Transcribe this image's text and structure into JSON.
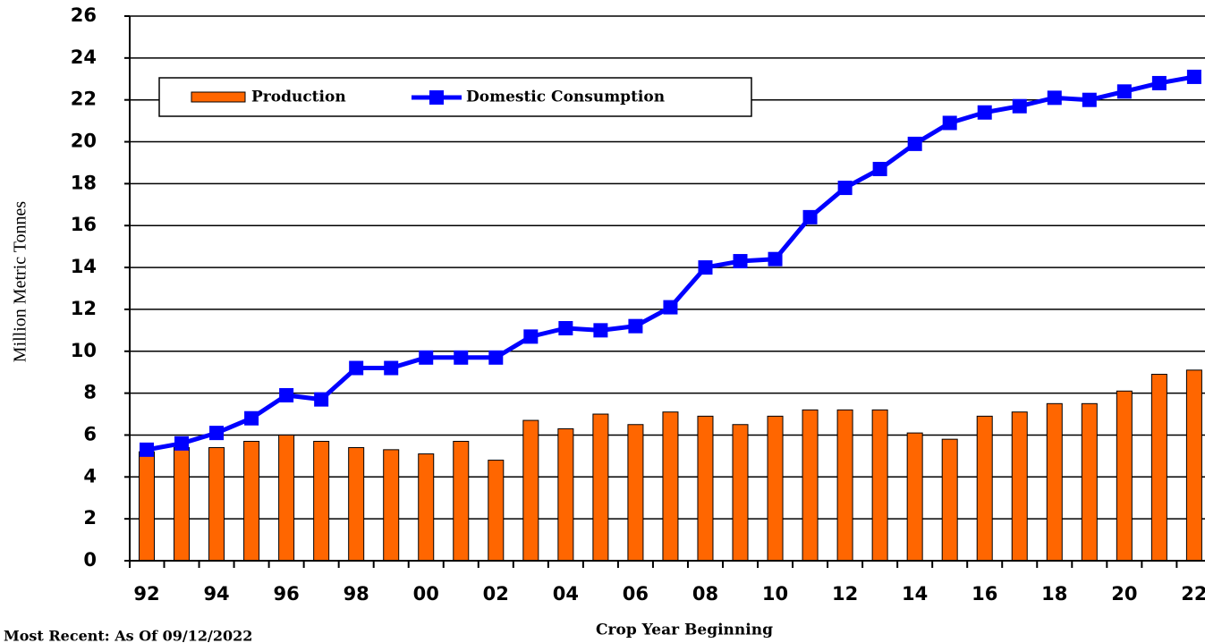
{
  "chart_data": {
    "type": "bar_line",
    "x_label": "Crop Year Beginning",
    "y_label": "Million Metric Tonnes",
    "footnote": "Most Recent: As Of 09/12/2022",
    "categories": [
      "92",
      null,
      "94",
      null,
      "96",
      null,
      "98",
      null,
      "00",
      null,
      "02",
      null,
      "04",
      null,
      "06",
      null,
      "08",
      null,
      "10",
      null,
      "12",
      null,
      "14",
      null,
      "16",
      null,
      "18",
      null,
      "20",
      null,
      "22"
    ],
    "series": [
      {
        "name": "Production",
        "type": "bar",
        "color": "#ff6600",
        "values": [
          5.2,
          5.4,
          5.4,
          5.7,
          6.0,
          5.7,
          5.4,
          5.3,
          5.1,
          5.7,
          4.8,
          6.7,
          6.3,
          7.0,
          6.5,
          7.1,
          6.9,
          6.5,
          6.9,
          7.2,
          7.2,
          7.2,
          6.1,
          5.8,
          6.9,
          7.1,
          7.5,
          7.5,
          8.1,
          8.9,
          9.1
        ]
      },
      {
        "name": "Domestic Consumption",
        "type": "line",
        "color": "#0000ff",
        "values": [
          5.3,
          5.6,
          6.1,
          6.8,
          7.9,
          7.7,
          9.2,
          9.2,
          9.7,
          9.7,
          9.7,
          10.7,
          11.1,
          11.0,
          11.2,
          12.1,
          14.0,
          14.3,
          14.4,
          16.4,
          17.8,
          18.7,
          19.9,
          20.9,
          21.4,
          21.7,
          22.1,
          22.0,
          22.4,
          22.8,
          23.1
        ]
      }
    ],
    "ylim": [
      0,
      26
    ],
    "yticks": [
      0,
      2,
      4,
      6,
      8,
      10,
      12,
      14,
      16,
      18,
      20,
      22,
      24,
      26
    ],
    "grid": true,
    "legend": "top-left"
  }
}
